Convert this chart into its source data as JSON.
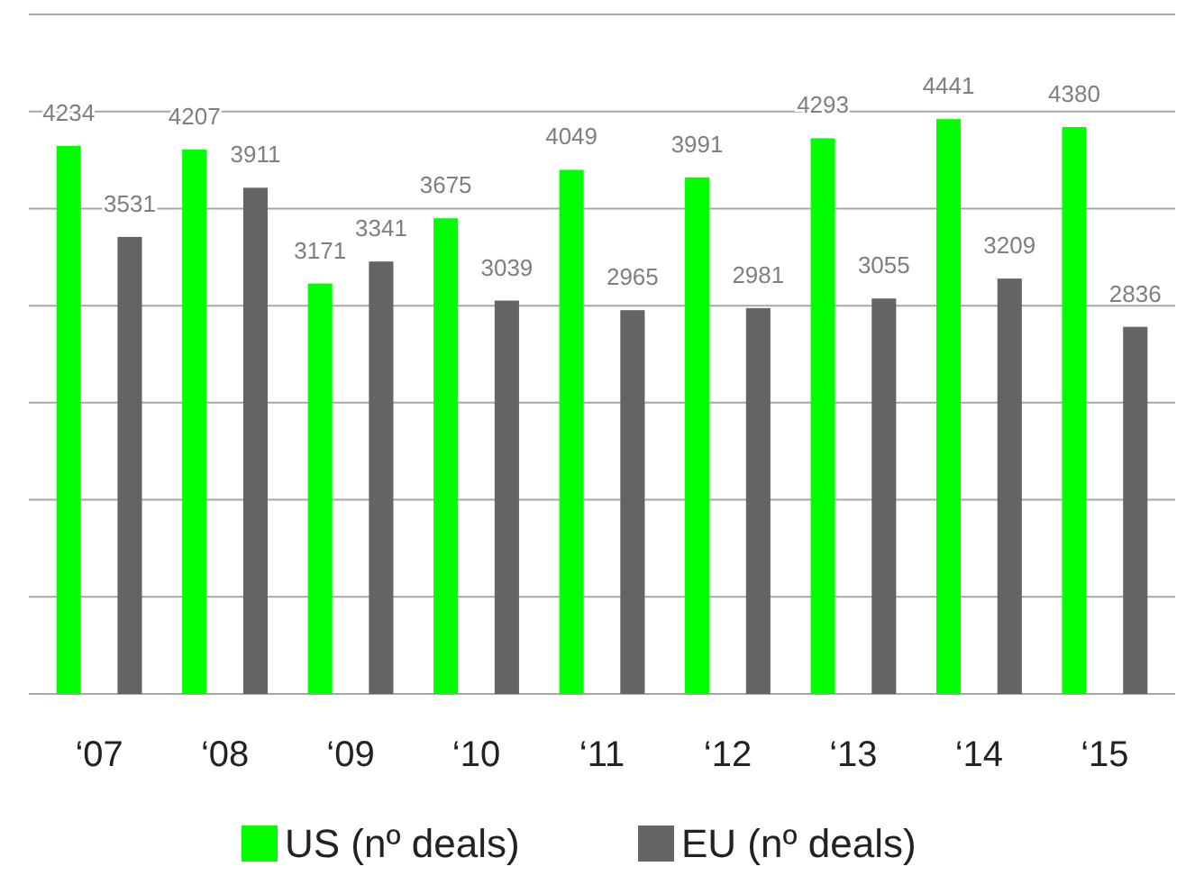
{
  "chart_data": {
    "type": "bar",
    "categories": [
      "‘07",
      "‘08",
      "‘09",
      "‘10",
      "‘11",
      "‘12",
      "‘13",
      "‘14",
      "‘15"
    ],
    "series": [
      {
        "name": "US (nº deals)",
        "color": "#00ff00",
        "values": [
          4234,
          4207,
          3171,
          3675,
          4049,
          3991,
          4293,
          4441,
          4380
        ]
      },
      {
        "name": "EU (nº deals)",
        "color": "#646464",
        "values": [
          3531,
          3911,
          3341,
          3039,
          2965,
          2981,
          3055,
          3209,
          2836
        ]
      }
    ],
    "ylim": [
      0,
      5250
    ],
    "yticks": [
      {
        "value": 0,
        "label": null
      },
      {
        "value": 750,
        "label": null
      },
      {
        "value": 1500,
        "label": null
      },
      {
        "value": 2250,
        "label": null
      },
      {
        "value": 3000,
        "label": null
      },
      {
        "value": 3750,
        "label": null
      },
      {
        "value": 4500,
        "label": null
      },
      {
        "value": 5250,
        "label": null
      }
    ],
    "grid": "y",
    "data_labels": true,
    "legend": "bottom",
    "tick_labels": "x"
  }
}
